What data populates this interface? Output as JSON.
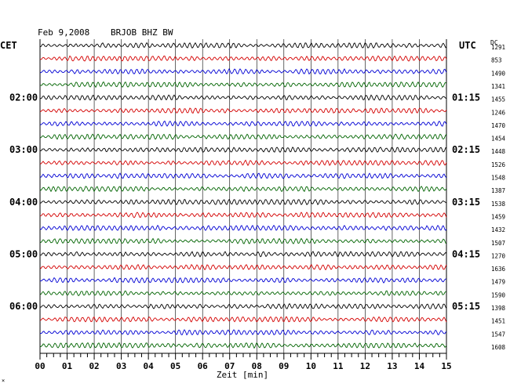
{
  "header": {
    "date": "Feb 9,2008",
    "station": "BRJOB BHZ BW",
    "left_zone": "CET",
    "right_zone": "UTC",
    "dc_label": "DC",
    "corner_mark": "×"
  },
  "colors": {
    "trace_cycle": [
      "#000000",
      "#d40000",
      "#0000d4",
      "#006400"
    ],
    "grid": "#000000",
    "text": "#000000"
  },
  "chart_data": {
    "type": "line",
    "xlabel": "Zeit [min]",
    "x_ticks": [
      "00",
      "01",
      "02",
      "03",
      "04",
      "05",
      "06",
      "07",
      "08",
      "09",
      "10",
      "11",
      "12",
      "13",
      "14",
      "15"
    ],
    "xlim": [
      0,
      15
    ],
    "minor_tick_step_min": 0.25,
    "traces_per_hour": 4,
    "left_time_labels": [
      {
        "trace": 4,
        "text": "02:00"
      },
      {
        "trace": 8,
        "text": "03:00"
      },
      {
        "trace": 12,
        "text": "04:00"
      },
      {
        "trace": 16,
        "text": "05:00"
      },
      {
        "trace": 20,
        "text": "06:00"
      }
    ],
    "right_time_labels": [
      {
        "trace": 4,
        "text": "01:15"
      },
      {
        "trace": 8,
        "text": "02:15"
      },
      {
        "trace": 12,
        "text": "03:15"
      },
      {
        "trace": 16,
        "text": "04:15"
      },
      {
        "trace": 20,
        "text": "05:15"
      }
    ],
    "dc_offsets": [
      1291,
      853,
      1490,
      1341,
      1455,
      1246,
      1470,
      1454,
      1448,
      1526,
      1548,
      1387,
      1538,
      1459,
      1432,
      1507,
      1270,
      1636,
      1479,
      1590,
      1398,
      1451,
      1547,
      1608
    ]
  }
}
